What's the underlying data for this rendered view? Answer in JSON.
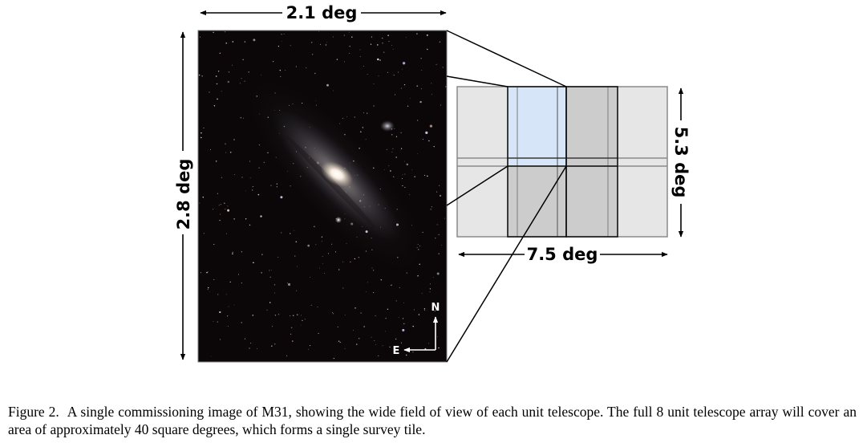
{
  "figure": {
    "width_label": "2.1 deg",
    "height_label": "2.8 deg",
    "tile_width_label": "7.5 deg",
    "tile_height_label": "5.3 deg",
    "compass_north": "N",
    "compass_east": "E",
    "colors": {
      "sky_background": "#0b0708",
      "tile_light": "#e6e6e6",
      "tile_mid": "#cccccc",
      "tile_highlight": "#d6e6f8",
      "tile_outline": "#8a8a8a"
    }
  },
  "caption": {
    "label": "Figure 2.",
    "text": "A single commissioning image of M31, showing the wide field of view of each unit telescope. The full 8 unit telescope array will cover an area of approximately 40 square degrees, which forms a single survey tile."
  }
}
